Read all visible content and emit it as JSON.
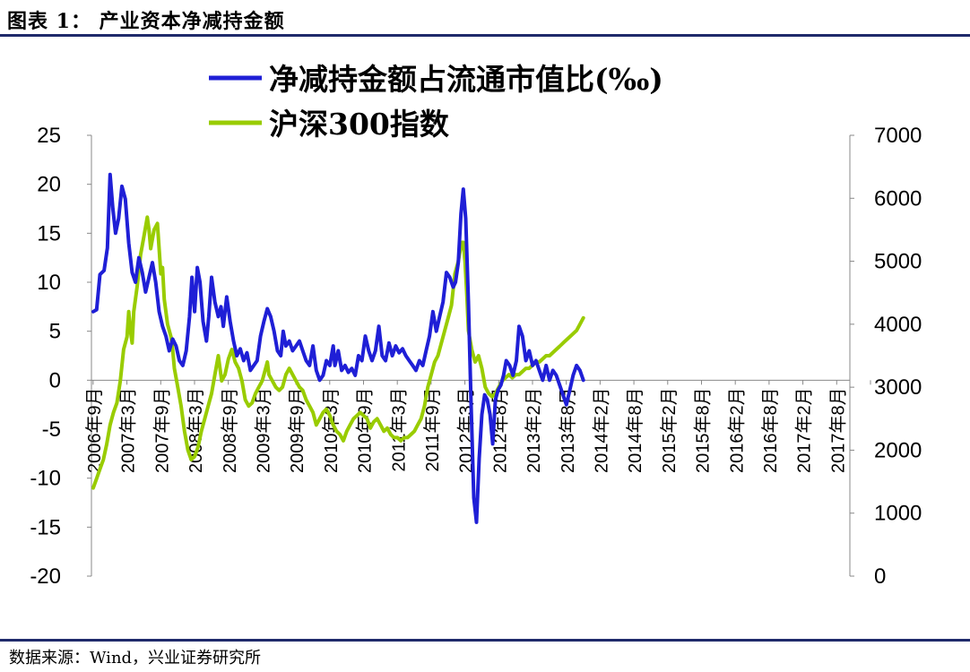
{
  "header": {
    "title": "图表 1：  产业资本净减持金额"
  },
  "footer": {
    "source": "数据来源：Wind，兴业证券研究所"
  },
  "chart_data": {
    "type": "line",
    "legend_position": "top-center",
    "grid": false,
    "x_categories": [
      "2006年9月",
      "2007年3月",
      "2007年9月",
      "2008年3月",
      "2008年9月",
      "2009年3月",
      "2009年9月",
      "2010年3月",
      "2010年9月",
      "2011年3月",
      "2011年9月",
      "2012年3月",
      "2012年8月",
      "2013年2月",
      "2013年8月",
      "2014年2月",
      "2014年8月",
      "2015年2月",
      "2015年8月",
      "2016年2月",
      "2016年8月",
      "2017年2月",
      "2017年8月"
    ],
    "y_left": {
      "range": [
        -20,
        25
      ],
      "ticks": [
        -20,
        -15,
        -10,
        -5,
        0,
        5,
        10,
        15,
        20,
        25
      ]
    },
    "y_right": {
      "range": [
        0,
        7000
      ],
      "ticks": [
        0,
        1000,
        2000,
        3000,
        4000,
        5000,
        6000,
        7000
      ]
    },
    "series": [
      {
        "name": "净减持金额占流通市值比(‰)",
        "axis": "left",
        "color": "#1f1fd6",
        "points": [
          [
            0.0,
            7.0
          ],
          [
            0.1,
            7.2
          ],
          [
            0.2,
            10.8
          ],
          [
            0.32,
            11.2
          ],
          [
            0.42,
            13.5
          ],
          [
            0.5,
            21.0
          ],
          [
            0.58,
            17.5
          ],
          [
            0.66,
            15.0
          ],
          [
            0.75,
            16.5
          ],
          [
            0.85,
            19.8
          ],
          [
            0.95,
            18.5
          ],
          [
            1.05,
            14.0
          ],
          [
            1.15,
            11.0
          ],
          [
            1.25,
            10.0
          ],
          [
            1.35,
            12.5
          ],
          [
            1.45,
            11.0
          ],
          [
            1.55,
            9.0
          ],
          [
            1.65,
            10.5
          ],
          [
            1.75,
            12.0
          ],
          [
            1.85,
            10.0
          ],
          [
            1.95,
            7.0
          ],
          [
            2.05,
            5.5
          ],
          [
            2.15,
            4.5
          ],
          [
            2.25,
            3.0
          ],
          [
            2.35,
            4.2
          ],
          [
            2.45,
            3.5
          ],
          [
            2.55,
            2.0
          ],
          [
            2.65,
            1.5
          ],
          [
            2.75,
            3.0
          ],
          [
            2.85,
            6.5
          ],
          [
            2.92,
            10.5
          ],
          [
            3.0,
            7.0
          ],
          [
            3.08,
            11.5
          ],
          [
            3.16,
            10.0
          ],
          [
            3.25,
            6.0
          ],
          [
            3.35,
            4.0
          ],
          [
            3.42,
            6.5
          ],
          [
            3.5,
            10.5
          ],
          [
            3.6,
            8.0
          ],
          [
            3.7,
            6.5
          ],
          [
            3.78,
            7.5
          ],
          [
            3.85,
            5.5
          ],
          [
            3.95,
            8.5
          ],
          [
            4.05,
            6.0
          ],
          [
            4.15,
            4.0
          ],
          [
            4.25,
            2.5
          ],
          [
            4.35,
            3.2
          ],
          [
            4.45,
            2.0
          ],
          [
            4.55,
            2.8
          ],
          [
            4.65,
            1.0
          ],
          [
            4.75,
            1.5
          ],
          [
            4.85,
            2.0
          ],
          [
            4.95,
            4.5
          ],
          [
            5.05,
            6.0
          ],
          [
            5.15,
            7.3
          ],
          [
            5.25,
            6.5
          ],
          [
            5.35,
            5.0
          ],
          [
            5.45,
            3.0
          ],
          [
            5.55,
            2.5
          ],
          [
            5.62,
            5.0
          ],
          [
            5.7,
            3.5
          ],
          [
            5.8,
            4.0
          ],
          [
            5.9,
            3.0
          ],
          [
            6.0,
            3.5
          ],
          [
            6.1,
            4.0
          ],
          [
            6.2,
            3.0
          ],
          [
            6.3,
            2.0
          ],
          [
            6.4,
            1.5
          ],
          [
            6.5,
            3.5
          ],
          [
            6.6,
            1.0
          ],
          [
            6.7,
            0.0
          ],
          [
            6.8,
            0.5
          ],
          [
            6.9,
            2.0
          ],
          [
            7.0,
            1.5
          ],
          [
            7.1,
            3.5
          ],
          [
            7.15,
            1.5
          ],
          [
            7.25,
            3.0
          ],
          [
            7.35,
            1.0
          ],
          [
            7.45,
            1.5
          ],
          [
            7.55,
            0.8
          ],
          [
            7.65,
            1.2
          ],
          [
            7.75,
            0.5
          ],
          [
            7.85,
            2.5
          ],
          [
            7.95,
            2.0
          ],
          [
            8.05,
            4.5
          ],
          [
            8.15,
            3.0
          ],
          [
            8.25,
            2.0
          ],
          [
            8.35,
            3.0
          ],
          [
            8.45,
            5.5
          ],
          [
            8.55,
            2.5
          ],
          [
            8.65,
            2.0
          ],
          [
            8.75,
            3.8
          ],
          [
            8.85,
            2.5
          ],
          [
            8.95,
            3.5
          ],
          [
            9.05,
            2.8
          ],
          [
            9.15,
            3.2
          ],
          [
            9.25,
            2.5
          ],
          [
            9.35,
            2.0
          ],
          [
            9.45,
            1.5
          ],
          [
            9.55,
            1.0
          ],
          [
            9.65,
            2.0
          ],
          [
            9.75,
            1.5
          ],
          [
            9.85,
            3.0
          ],
          [
            9.95,
            4.5
          ],
          [
            10.05,
            7.0
          ],
          [
            10.15,
            5.0
          ],
          [
            10.25,
            6.5
          ],
          [
            10.35,
            8.0
          ],
          [
            10.45,
            11.0
          ],
          [
            10.55,
            10.5
          ],
          [
            10.65,
            9.5
          ],
          [
            10.72,
            10.0
          ],
          [
            10.8,
            12.0
          ],
          [
            10.88,
            17.0
          ],
          [
            10.95,
            19.5
          ],
          [
            11.02,
            16.5
          ],
          [
            11.1,
            8.0
          ],
          [
            11.18,
            -2.5
          ],
          [
            11.26,
            -12.0
          ],
          [
            11.34,
            -14.5
          ],
          [
            11.42,
            -8.0
          ],
          [
            11.5,
            -3.5
          ],
          [
            11.58,
            -1.5
          ],
          [
            11.66,
            -2.0
          ],
          [
            11.74,
            -3.5
          ],
          [
            11.82,
            -6.5
          ],
          [
            11.9,
            -2.0
          ],
          [
            11.98,
            -1.0
          ],
          [
            12.06,
            -0.5
          ],
          [
            12.14,
            0.5
          ],
          [
            12.22,
            2.0
          ],
          [
            12.32,
            1.5
          ],
          [
            12.42,
            0.5
          ],
          [
            12.52,
            2.0
          ],
          [
            12.6,
            5.5
          ],
          [
            12.7,
            4.5
          ],
          [
            12.8,
            2.0
          ],
          [
            12.9,
            3.0
          ],
          [
            13.0,
            1.5
          ],
          [
            13.1,
            2.0
          ],
          [
            13.2,
            1.0
          ],
          [
            13.3,
            0.0
          ],
          [
            13.4,
            1.5
          ],
          [
            13.5,
            0.0
          ],
          [
            13.6,
            1.0
          ],
          [
            13.7,
            0.5
          ],
          [
            13.8,
            -0.5
          ],
          [
            13.9,
            -1.5
          ],
          [
            14.0,
            -2.5
          ],
          [
            14.1,
            -1.0
          ],
          [
            14.2,
            0.5
          ],
          [
            14.3,
            1.5
          ],
          [
            14.4,
            1.0
          ],
          [
            14.5,
            0.0
          ]
        ]
      },
      {
        "name": "沪深300指数",
        "axis": "right",
        "color": "#99cc00",
        "points": [
          [
            0.0,
            1400
          ],
          [
            0.1,
            1550
          ],
          [
            0.2,
            1700
          ],
          [
            0.3,
            1850
          ],
          [
            0.4,
            2100
          ],
          [
            0.5,
            2400
          ],
          [
            0.6,
            2600
          ],
          [
            0.7,
            2750
          ],
          [
            0.8,
            3100
          ],
          [
            0.9,
            3600
          ],
          [
            1.0,
            3800
          ],
          [
            1.05,
            4200
          ],
          [
            1.1,
            3900
          ],
          [
            1.15,
            3700
          ],
          [
            1.2,
            4200
          ],
          [
            1.3,
            4600
          ],
          [
            1.4,
            5100
          ],
          [
            1.5,
            5400
          ],
          [
            1.6,
            5700
          ],
          [
            1.65,
            5500
          ],
          [
            1.7,
            5200
          ],
          [
            1.8,
            5500
          ],
          [
            1.9,
            5600
          ],
          [
            2.0,
            4800
          ],
          [
            2.05,
            4900
          ],
          [
            2.1,
            4400
          ],
          [
            2.2,
            4000
          ],
          [
            2.3,
            3800
          ],
          [
            2.35,
            3600
          ],
          [
            2.4,
            3300
          ],
          [
            2.5,
            3000
          ],
          [
            2.6,
            2700
          ],
          [
            2.7,
            2300
          ],
          [
            2.8,
            2000
          ],
          [
            2.9,
            1850
          ],
          [
            3.0,
            1900
          ],
          [
            3.1,
            2050
          ],
          [
            3.2,
            2300
          ],
          [
            3.3,
            2500
          ],
          [
            3.4,
            2700
          ],
          [
            3.5,
            2900
          ],
          [
            3.6,
            3200
          ],
          [
            3.7,
            3500
          ],
          [
            3.75,
            3300
          ],
          [
            3.8,
            3100
          ],
          [
            3.9,
            3200
          ],
          [
            4.0,
            3450
          ],
          [
            4.1,
            3600
          ],
          [
            4.2,
            3400
          ],
          [
            4.3,
            3300
          ],
          [
            4.4,
            3100
          ],
          [
            4.5,
            2800
          ],
          [
            4.6,
            2700
          ],
          [
            4.7,
            2750
          ],
          [
            4.8,
            2900
          ],
          [
            4.9,
            3000
          ],
          [
            5.0,
            3100
          ],
          [
            5.1,
            3300
          ],
          [
            5.15,
            3400
          ],
          [
            5.2,
            3200
          ],
          [
            5.3,
            3100
          ],
          [
            5.4,
            3000
          ],
          [
            5.5,
            2950
          ],
          [
            5.6,
            3000
          ],
          [
            5.7,
            3200
          ],
          [
            5.8,
            3300
          ],
          [
            5.9,
            3200
          ],
          [
            6.0,
            3100
          ],
          [
            6.1,
            3000
          ],
          [
            6.2,
            2950
          ],
          [
            6.3,
            2800
          ],
          [
            6.4,
            2700
          ],
          [
            6.5,
            2600
          ],
          [
            6.6,
            2400
          ],
          [
            6.7,
            2500
          ],
          [
            6.8,
            2600
          ],
          [
            6.9,
            2650
          ],
          [
            7.0,
            2550
          ],
          [
            7.1,
            2400
          ],
          [
            7.2,
            2300
          ],
          [
            7.3,
            2250
          ],
          [
            7.4,
            2150
          ],
          [
            7.5,
            2300
          ],
          [
            7.6,
            2400
          ],
          [
            7.7,
            2500
          ],
          [
            7.8,
            2550
          ],
          [
            7.9,
            2600
          ],
          [
            8.0,
            2550
          ],
          [
            8.1,
            2500
          ],
          [
            8.2,
            2350
          ],
          [
            8.3,
            2450
          ],
          [
            8.4,
            2500
          ],
          [
            8.5,
            2400
          ],
          [
            8.6,
            2300
          ],
          [
            8.7,
            2350
          ],
          [
            8.8,
            2250
          ],
          [
            8.9,
            2200
          ],
          [
            9.0,
            2200
          ],
          [
            9.1,
            2150
          ],
          [
            9.2,
            2200
          ],
          [
            9.3,
            2200
          ],
          [
            9.4,
            2250
          ],
          [
            9.5,
            2300
          ],
          [
            9.6,
            2400
          ],
          [
            9.7,
            2500
          ],
          [
            9.8,
            2700
          ],
          [
            9.9,
            3000
          ],
          [
            10.0,
            3200
          ],
          [
            10.1,
            3400
          ],
          [
            10.2,
            3500
          ],
          [
            10.3,
            3700
          ],
          [
            10.4,
            3900
          ],
          [
            10.5,
            4100
          ],
          [
            10.6,
            4300
          ],
          [
            10.7,
            4800
          ],
          [
            10.8,
            5000
          ],
          [
            10.9,
            5300
          ],
          [
            10.95,
            5300
          ],
          [
            11.0,
            5000
          ],
          [
            11.05,
            4500
          ],
          [
            11.1,
            3900
          ],
          [
            11.2,
            3600
          ],
          [
            11.3,
            3400
          ],
          [
            11.4,
            3500
          ],
          [
            11.5,
            3300
          ],
          [
            11.6,
            3000
          ],
          [
            11.7,
            2900
          ],
          [
            11.8,
            2850
          ],
          [
            11.9,
            2900
          ],
          [
            12.0,
            3000
          ],
          [
            12.1,
            3100
          ],
          [
            12.2,
            3150
          ],
          [
            12.3,
            3200
          ],
          [
            12.4,
            3150
          ],
          [
            12.5,
            3200
          ],
          [
            12.6,
            3200
          ],
          [
            12.7,
            3250
          ],
          [
            12.8,
            3300
          ],
          [
            12.9,
            3300
          ],
          [
            13.0,
            3350
          ],
          [
            13.1,
            3400
          ],
          [
            13.2,
            3400
          ],
          [
            13.3,
            3450
          ],
          [
            13.4,
            3500
          ],
          [
            13.5,
            3500
          ],
          [
            13.6,
            3550
          ],
          [
            13.7,
            3600
          ],
          [
            13.8,
            3650
          ],
          [
            13.9,
            3700
          ],
          [
            14.0,
            3750
          ],
          [
            14.1,
            3800
          ],
          [
            14.2,
            3850
          ],
          [
            14.3,
            3900
          ],
          [
            14.4,
            4000
          ],
          [
            14.5,
            4100
          ]
        ]
      }
    ]
  }
}
